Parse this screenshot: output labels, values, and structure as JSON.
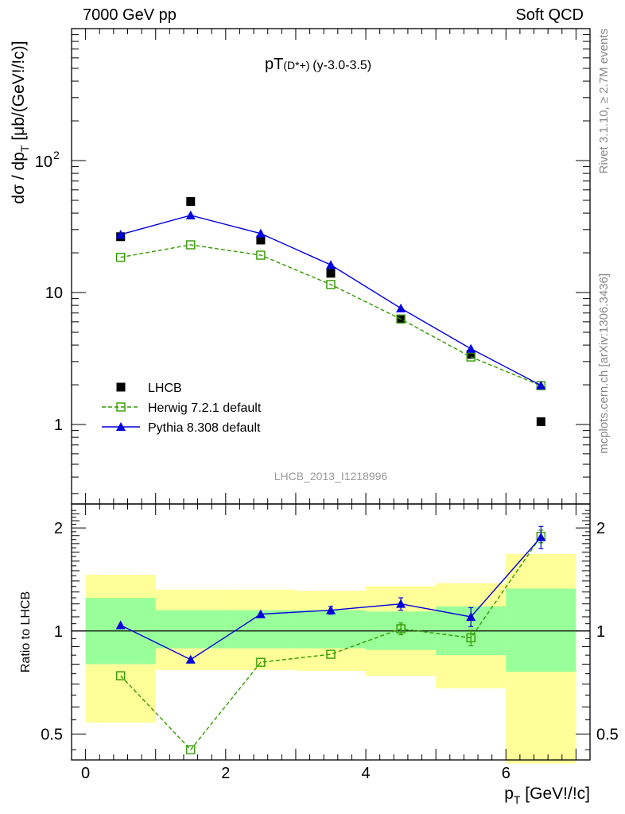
{
  "header": {
    "energy": "7000 GeV pp",
    "category": "Soft QCD"
  },
  "side_text": {
    "rivet": "Rivet 3.1.10, ≥ 2.7M events",
    "mcplots": "mcplots.cern.ch [arXiv:1306.3436]"
  },
  "analysis_id": "LHCB_2013_I1218996",
  "chart_data": [
    {
      "type": "scatter",
      "title": "pT(D*+) (y-3.0-3.5)",
      "title_main": "pT",
      "title_paren": "(D*+)",
      "title_rest": "(y-3.0-3.5)",
      "ylabel": "dσ / dp_T [μb/(GeV!/!c)]",
      "ylabel_parts": {
        "a": "dσ / dp",
        "sub": "T",
        "b": " [μb/(GeV!/!c)]"
      },
      "xlim": [
        -0.2,
        7.2
      ],
      "ylim": [
        0.25,
        1000
      ],
      "yscale": "log",
      "y_ticks": [
        {
          "value": 1,
          "label": "1"
        },
        {
          "value": 10,
          "label": "10"
        },
        {
          "value": 100,
          "label": "10",
          "sup": "2"
        }
      ],
      "legend_position": "lower-left",
      "series": [
        {
          "name": "LHCB",
          "marker": "filled-square",
          "color": "#000000",
          "x": [
            0.5,
            1.5,
            2.5,
            3.5,
            4.5,
            5.5,
            6.5
          ],
          "values": [
            26.5,
            49,
            25,
            14,
            6.3,
            3.4,
            1.05
          ]
        },
        {
          "name": "Herwig 7.2.1 default",
          "marker": "open-square",
          "line": "dashed",
          "color": "#339900",
          "x": [
            0.5,
            1.5,
            2.5,
            3.5,
            4.5,
            5.5,
            6.5
          ],
          "values": [
            18.5,
            23,
            19.2,
            11.5,
            6.3,
            3.25,
            1.97
          ]
        },
        {
          "name": "Pythia 8.308 default",
          "marker": "filled-triangle",
          "line": "solid",
          "color": "#0000dd",
          "x": [
            0.5,
            1.5,
            2.5,
            3.5,
            4.5,
            5.5,
            6.5
          ],
          "values": [
            27.5,
            38.5,
            28,
            16.2,
            7.6,
            3.75,
            1.98
          ]
        }
      ]
    },
    {
      "type": "line",
      "ylabel": "Ratio to LHCB",
      "xlabel": "p_T [GeV!/!c]",
      "xlabel_parts": {
        "a": "p",
        "sub": "T",
        "b": " [GeV!/!c]"
      },
      "xlim": [
        -0.2,
        7.2
      ],
      "ylim": [
        0.42,
        2.35
      ],
      "yscale": "log",
      "x_ticks": [
        0,
        2,
        4,
        6
      ],
      "y_ticks": [
        {
          "value": 0.5,
          "label": "0.5"
        },
        {
          "value": 1,
          "label": "1"
        },
        {
          "value": 2,
          "label": "2"
        }
      ],
      "uncertainty_bands": {
        "bin_edges": [
          0,
          1,
          2,
          3,
          4,
          5,
          6,
          7
        ],
        "stat": {
          "color": "#99ff99",
          "low": [
            0.8,
            0.89,
            0.89,
            0.89,
            0.88,
            0.85,
            0.76
          ],
          "high": [
            1.25,
            1.15,
            1.15,
            1.15,
            1.14,
            1.18,
            1.33
          ]
        },
        "total": {
          "color": "#ffff99",
          "low": [
            0.54,
            0.77,
            0.77,
            0.765,
            0.74,
            0.68,
            0.41
          ],
          "high": [
            1.46,
            1.32,
            1.32,
            1.31,
            1.35,
            1.38,
            1.68
          ]
        }
      },
      "series": [
        {
          "name": "Herwig 7.2.1 default",
          "color": "#339900",
          "x": [
            0.5,
            1.5,
            2.5,
            3.5,
            4.5,
            5.5,
            6.5
          ],
          "values": [
            0.74,
            0.45,
            0.81,
            0.855,
            1.015,
            0.955,
            1.89
          ],
          "err": [
            0,
            0,
            0,
            0,
            0.04,
            0.05,
            0.08
          ]
        },
        {
          "name": "Pythia 8.308 default",
          "color": "#0000dd",
          "x": [
            0.5,
            1.5,
            2.5,
            3.5,
            4.5,
            5.5,
            6.5
          ],
          "values": [
            1.04,
            0.825,
            1.12,
            1.15,
            1.2,
            1.1,
            1.88
          ],
          "err": [
            0,
            0,
            0,
            0.03,
            0.05,
            0.07,
            0.14
          ]
        }
      ]
    }
  ]
}
